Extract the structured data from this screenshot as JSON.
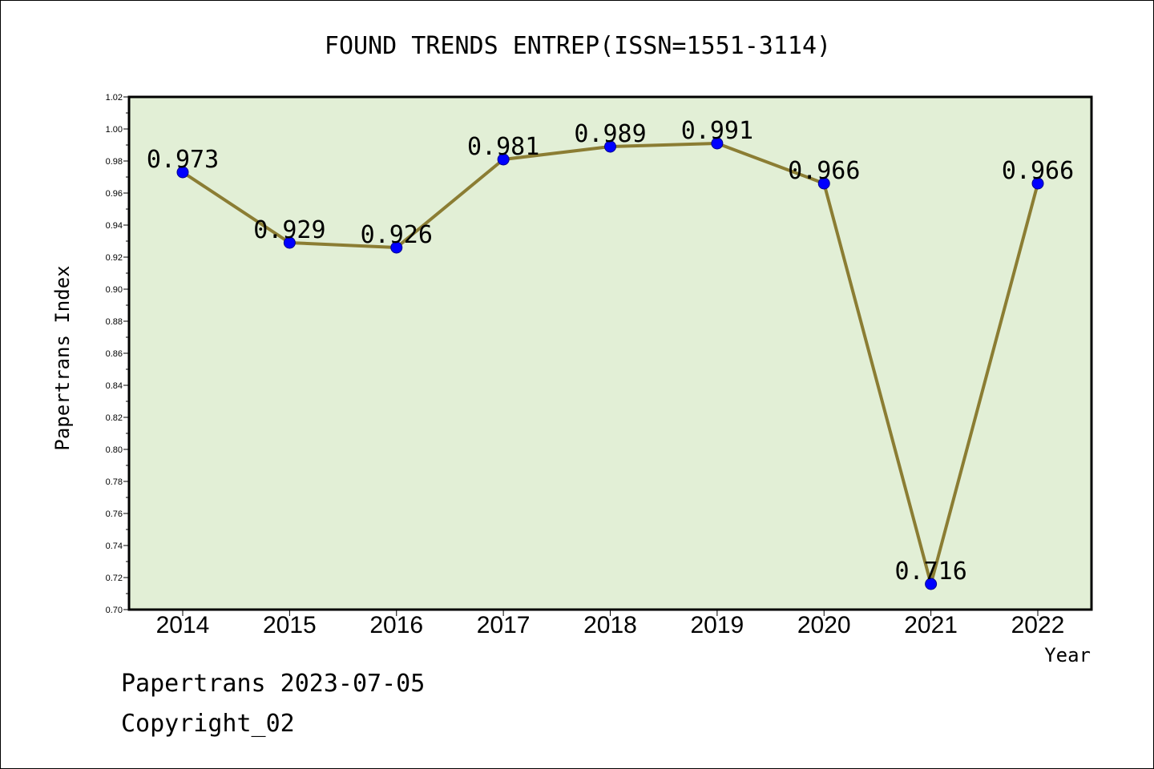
{
  "chart_data": {
    "type": "line",
    "title": "FOUND TRENDS ENTREP(ISSN=1551-3114)",
    "xlabel": "Year",
    "ylabel": "Papertrans Index",
    "categories": [
      "2014",
      "2015",
      "2016",
      "2017",
      "2018",
      "2019",
      "2020",
      "2021",
      "2022"
    ],
    "values": [
      0.973,
      0.929,
      0.926,
      0.981,
      0.989,
      0.991,
      0.966,
      0.716,
      0.966
    ],
    "data_labels": [
      "0.973",
      "0.929",
      "0.926",
      "0.981",
      "0.989",
      "0.991",
      "0.966",
      "0.716",
      "0.966"
    ],
    "ylim": [
      0.7,
      1.02
    ],
    "yticks": [
      "0.70",
      "0.72",
      "0.74",
      "0.76",
      "0.78",
      "0.80",
      "0.82",
      "0.84",
      "0.86",
      "0.88",
      "0.90",
      "0.92",
      "0.94",
      "0.96",
      "0.98",
      "1.00",
      "1.02"
    ],
    "grid": false,
    "colors": {
      "plot_background": "#e2efd6",
      "line": "#8b7d33",
      "marker": "#0000ff"
    }
  },
  "footer": {
    "line1": "Papertrans 2023-07-05",
    "line2": "Copyright_02"
  }
}
